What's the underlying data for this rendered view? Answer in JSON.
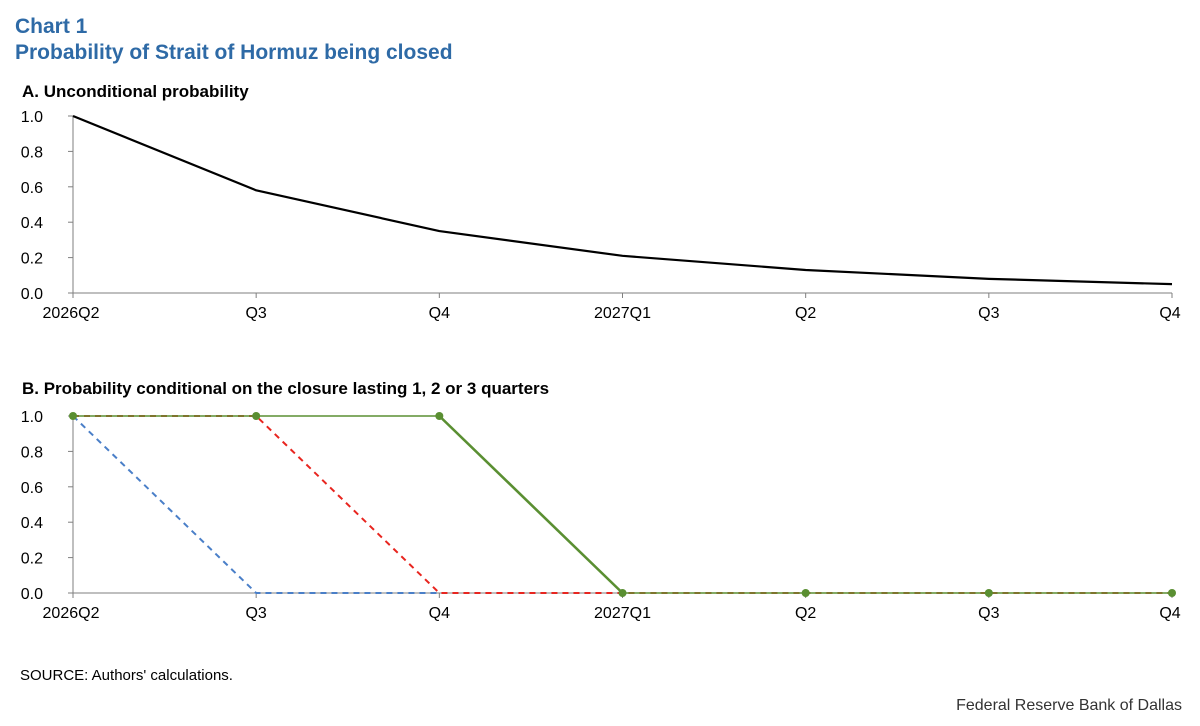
{
  "header": {
    "chart_label": "Chart 1",
    "title": "Probability of Strait of Hormuz being closed"
  },
  "source": "SOURCE: Authors' calculations.",
  "footer": "Federal Reserve Bank of Dallas",
  "colors": {
    "title": "#2e6aa6",
    "panel_a_line": "#000000",
    "one_quarter": "#4a7fc8",
    "two_quarters": "#e8251f",
    "three_quarters": "#5a8f32"
  },
  "chart_data": [
    {
      "panel": "A",
      "type": "line",
      "title": "A. Unconditional probability",
      "categories": [
        "2026Q2",
        "Q3",
        "Q4",
        "2027Q1",
        "Q2",
        "Q3",
        "Q4"
      ],
      "series": [
        {
          "values": [
            1.0,
            0.58,
            0.35,
            0.21,
            0.13,
            0.08,
            0.05
          ]
        }
      ],
      "yticks": [
        "0.0",
        "0.2",
        "0.4",
        "0.6",
        "0.8",
        "1.0"
      ],
      "ylim": [
        0,
        1
      ],
      "xlabel": "",
      "ylabel": "",
      "grid": false,
      "legend": "none"
    },
    {
      "panel": "B",
      "type": "line",
      "title": "B. Probability  conditional on the closure lasting 1, 2 or 3 quarters",
      "categories": [
        "2026Q2",
        "Q3",
        "Q4",
        "2027Q1",
        "Q2",
        "Q3",
        "Q4"
      ],
      "series": [
        {
          "values": [
            1,
            0,
            0,
            0,
            0,
            0,
            0
          ],
          "style": "dashed"
        },
        {
          "values": [
            1,
            1,
            0,
            0,
            0,
            0,
            0
          ],
          "style": "dashed"
        },
        {
          "values": [
            1,
            1,
            1,
            0,
            0,
            0,
            0
          ],
          "style": "solid-markers"
        }
      ],
      "yticks": [
        "0.0",
        "0.2",
        "0.4",
        "0.6",
        "0.8",
        "1.0"
      ],
      "ylim": [
        0,
        1
      ],
      "xlabel": "",
      "ylabel": "",
      "grid": false,
      "legend": "none"
    }
  ]
}
